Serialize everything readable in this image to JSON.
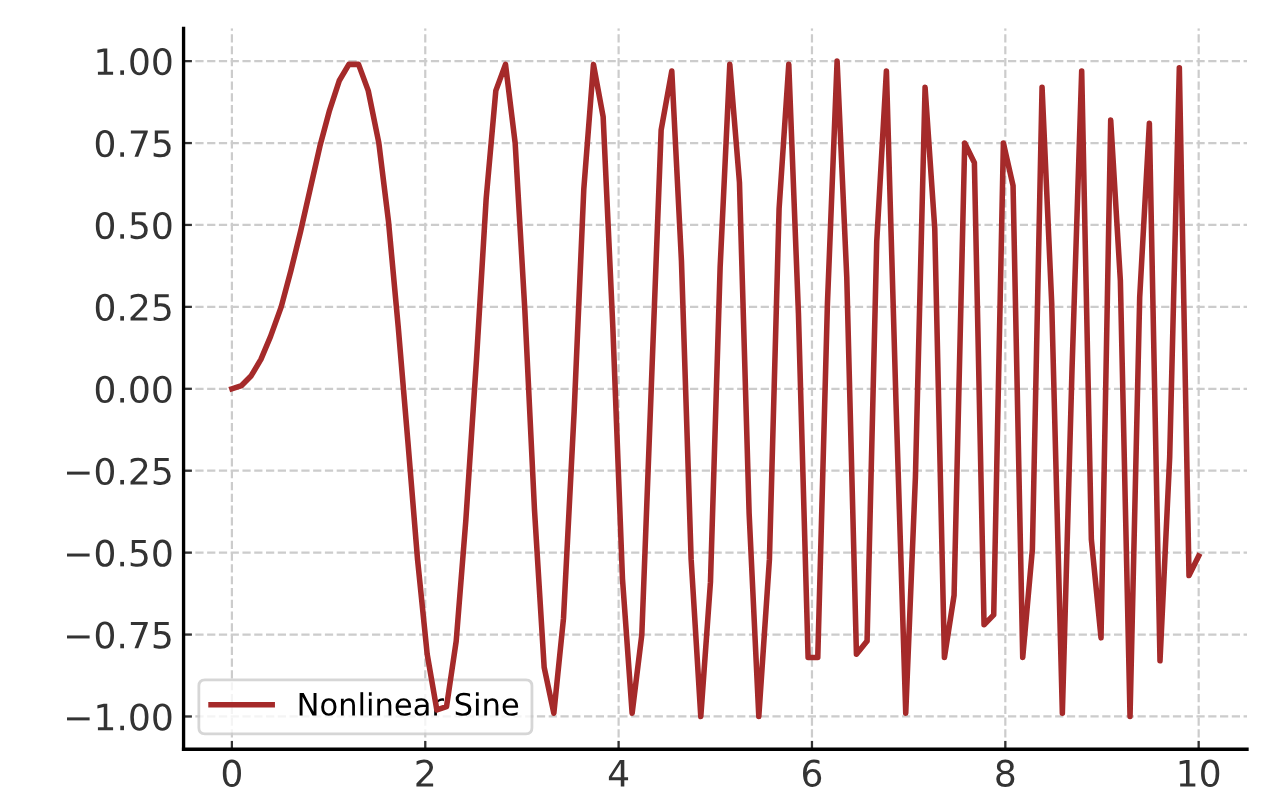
{
  "chart_data": {
    "type": "line",
    "xlim": [
      -0.5,
      10.5
    ],
    "ylim": [
      -1.1,
      1.1
    ],
    "xticks": [
      0,
      2,
      4,
      6,
      8,
      10
    ],
    "yticks": [
      {
        "value": -1,
        "label": "−1.00"
      },
      {
        "value": -0.75,
        "label": "−0.75"
      },
      {
        "value": -0.5,
        "label": "−0.50"
      },
      {
        "value": -0.25,
        "label": "−0.25"
      },
      {
        "value": 0,
        "label": "0.00"
      },
      {
        "value": 0.25,
        "label": "0.25"
      },
      {
        "value": 0.5,
        "label": "0.50"
      },
      {
        "value": 0.75,
        "label": "0.75"
      },
      {
        "value": 1,
        "label": "1.00"
      }
    ],
    "grid": true,
    "legend": "bottom left",
    "marker": "none",
    "line_style": "solid",
    "series": [
      {
        "name": "Nonlinear Sine",
        "color": "#a52a2a",
        "x": [
          0.0,
          0.1,
          0.2,
          0.3,
          0.4,
          0.51,
          0.61,
          0.71,
          0.81,
          0.91,
          1.01,
          1.11,
          1.21,
          1.31,
          1.41,
          1.52,
          1.62,
          1.72,
          1.82,
          1.92,
          2.02,
          2.12,
          2.22,
          2.32,
          2.42,
          2.53,
          2.63,
          2.73,
          2.83,
          2.93,
          3.03,
          3.13,
          3.23,
          3.33,
          3.43,
          3.54,
          3.64,
          3.74,
          3.84,
          3.94,
          4.04,
          4.14,
          4.24,
          4.34,
          4.44,
          4.55,
          4.65,
          4.75,
          4.85,
          4.95,
          5.05,
          5.15,
          5.25,
          5.35,
          5.45,
          5.56,
          5.66,
          5.76,
          5.86,
          5.96,
          6.06,
          6.16,
          6.26,
          6.36,
          6.46,
          6.57,
          6.67,
          6.77,
          6.87,
          6.97,
          7.07,
          7.17,
          7.27,
          7.37,
          7.47,
          7.58,
          7.68,
          7.78,
          7.88,
          7.98,
          8.08,
          8.18,
          8.28,
          8.38,
          8.48,
          8.59,
          8.69,
          8.79,
          8.89,
          8.99,
          9.09,
          9.19,
          9.29,
          9.39,
          9.49,
          9.6,
          9.7,
          9.8,
          9.9,
          10.0
        ],
        "values": [
          0.0,
          0.01,
          0.04,
          0.09,
          0.16,
          0.25,
          0.36,
          0.48,
          0.61,
          0.74,
          0.85,
          0.94,
          0.99,
          0.99,
          0.91,
          0.75,
          0.51,
          0.19,
          -0.16,
          -0.52,
          -0.81,
          -0.98,
          -0.97,
          -0.77,
          -0.4,
          0.09,
          0.58,
          0.91,
          0.99,
          0.75,
          0.24,
          -0.37,
          -0.85,
          -0.99,
          -0.7,
          -0.07,
          0.61,
          0.99,
          0.83,
          0.19,
          -0.58,
          -0.99,
          -0.75,
          0.02,
          0.79,
          0.97,
          0.39,
          -0.52,
          -1.0,
          -0.59,
          0.37,
          0.99,
          0.63,
          -0.38,
          -1.0,
          -0.52,
          0.55,
          0.99,
          0.23,
          -0.82,
          -0.82,
          0.26,
          1.0,
          0.34,
          -0.81,
          -0.77,
          0.45,
          0.97,
          -0.05,
          -0.99,
          -0.27,
          0.92,
          0.49,
          -0.82,
          -0.63,
          0.75,
          0.69,
          -0.72,
          -0.69,
          0.75,
          0.62,
          -0.82,
          -0.49,
          0.92,
          0.26,
          -0.99,
          0.06,
          0.97,
          -0.46,
          -0.76,
          0.82,
          0.33,
          -1.0,
          0.28,
          0.81,
          -0.83,
          -0.21,
          0.98,
          -0.57,
          -0.51
        ]
      }
    ]
  }
}
